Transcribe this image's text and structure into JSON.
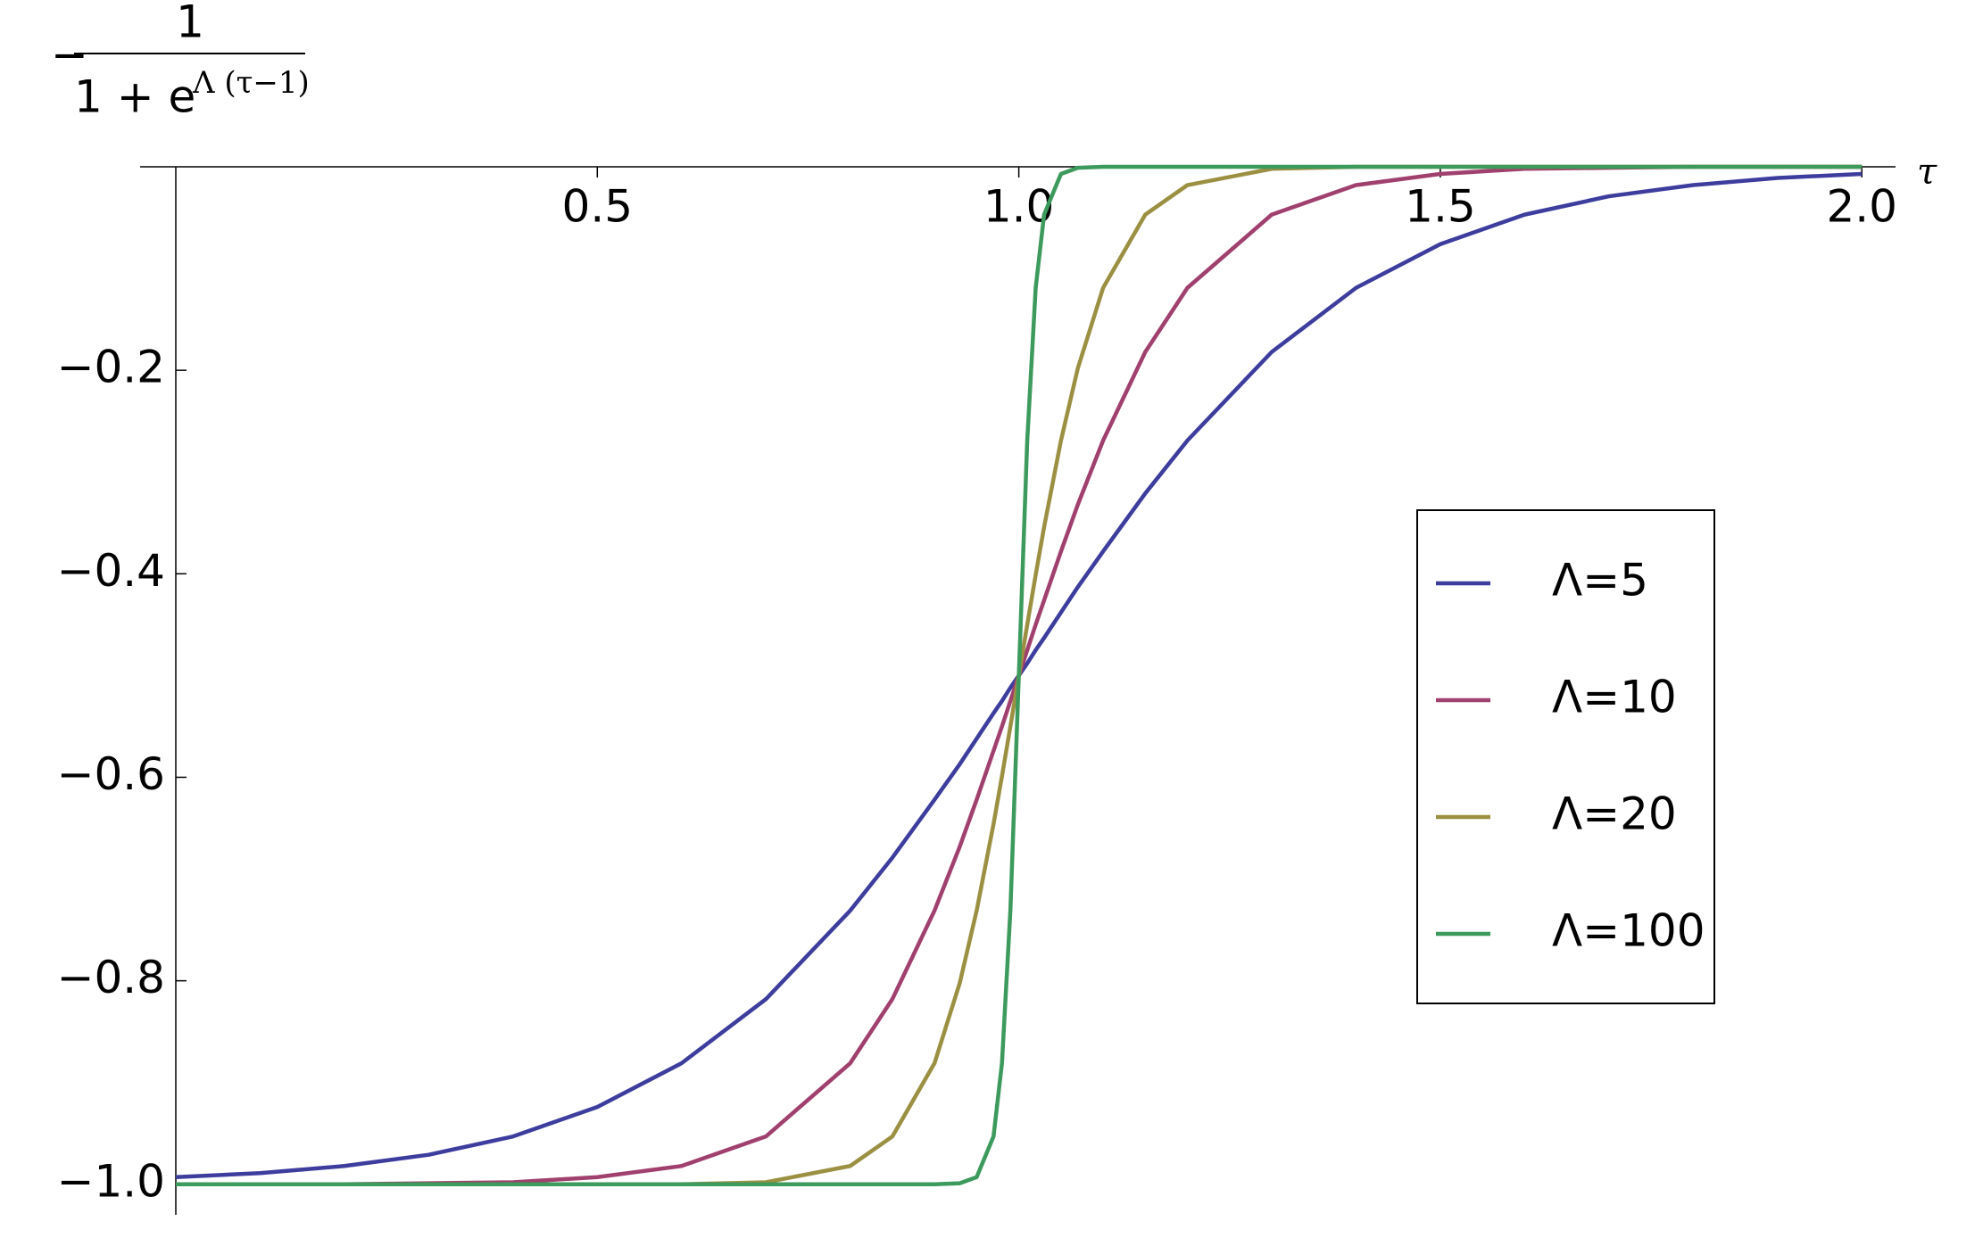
{
  "chart_data": {
    "type": "line",
    "ylabel": {
      "sign": "−",
      "numerator": "1",
      "denominator": "1 + e",
      "exponent": "Λ (τ−1)"
    },
    "xlabel": "τ",
    "x": [
      0,
      0.1,
      0.2,
      0.3,
      0.4,
      0.5,
      0.6,
      0.7,
      0.8,
      0.85,
      0.9,
      0.93,
      0.95,
      0.97,
      0.98,
      0.99,
      1.0,
      1.01,
      1.02,
      1.03,
      1.05,
      1.07,
      1.1,
      1.15,
      1.2,
      1.3,
      1.4,
      1.5,
      1.6,
      1.7,
      1.8,
      1.9,
      2.0
    ],
    "series": [
      {
        "name": "Λ=5",
        "color": "#3d3d9e",
        "values": [
          -0.993,
          -0.989,
          -0.982,
          -0.971,
          -0.953,
          -0.924,
          -0.881,
          -0.818,
          -0.731,
          -0.679,
          -0.622,
          -0.587,
          -0.562,
          -0.537,
          -0.525,
          -0.512,
          -0.5,
          -0.488,
          -0.475,
          -0.463,
          -0.438,
          -0.413,
          -0.378,
          -0.321,
          -0.269,
          -0.182,
          -0.119,
          -0.076,
          -0.047,
          -0.029,
          -0.018,
          -0.011,
          -0.007
        ]
      },
      {
        "name": "Λ=10",
        "color": "#a0406e",
        "values": [
          -1,
          -1,
          -1,
          -0.999,
          -0.998,
          -0.993,
          -0.982,
          -0.953,
          -0.881,
          -0.818,
          -0.731,
          -0.668,
          -0.622,
          -0.574,
          -0.55,
          -0.525,
          -0.5,
          -0.475,
          -0.45,
          -0.426,
          -0.378,
          -0.332,
          -0.269,
          -0.182,
          -0.119,
          -0.047,
          -0.018,
          -0.007,
          -0.002,
          -0.001,
          0,
          0,
          0
        ]
      },
      {
        "name": "Λ=20",
        "color": "#9b9042",
        "values": [
          -1,
          -1,
          -1,
          -1,
          -1,
          -1,
          -1,
          -0.998,
          -0.982,
          -0.953,
          -0.881,
          -0.802,
          -0.731,
          -0.646,
          -0.599,
          -0.55,
          -0.5,
          -0.45,
          -0.401,
          -0.354,
          -0.269,
          -0.198,
          -0.119,
          -0.047,
          -0.018,
          -0.002,
          0,
          0,
          0,
          0,
          0,
          0,
          0
        ]
      },
      {
        "name": "Λ=100",
        "color": "#3c9a5c",
        "values": [
          -1,
          -1,
          -1,
          -1,
          -1,
          -1,
          -1,
          -1,
          -1,
          -1,
          -1,
          -0.999,
          -0.993,
          -0.953,
          -0.881,
          -0.731,
          -0.5,
          -0.269,
          -0.119,
          -0.047,
          -0.007,
          -0.001,
          0,
          0,
          0,
          0,
          0,
          0,
          0,
          0,
          0,
          0,
          0
        ]
      }
    ],
    "xlim": [
      0,
      2.04
    ],
    "ylim": [
      -1.03,
      0
    ],
    "xticks": [
      0.5,
      {
        "value": 1,
        "label": "1.0"
      },
      1.5,
      {
        "value": 2,
        "label": "2.0"
      }
    ],
    "yticks": [
      {
        "value": -0.2,
        "label": "−0.2"
      },
      {
        "value": -0.4,
        "label": "−0.4"
      },
      {
        "value": -0.6,
        "label": "−0.6"
      },
      {
        "value": -0.8,
        "label": "−0.8"
      },
      {
        "value": -1,
        "label": "−1.0"
      }
    ],
    "grid": false,
    "legend": "right"
  }
}
